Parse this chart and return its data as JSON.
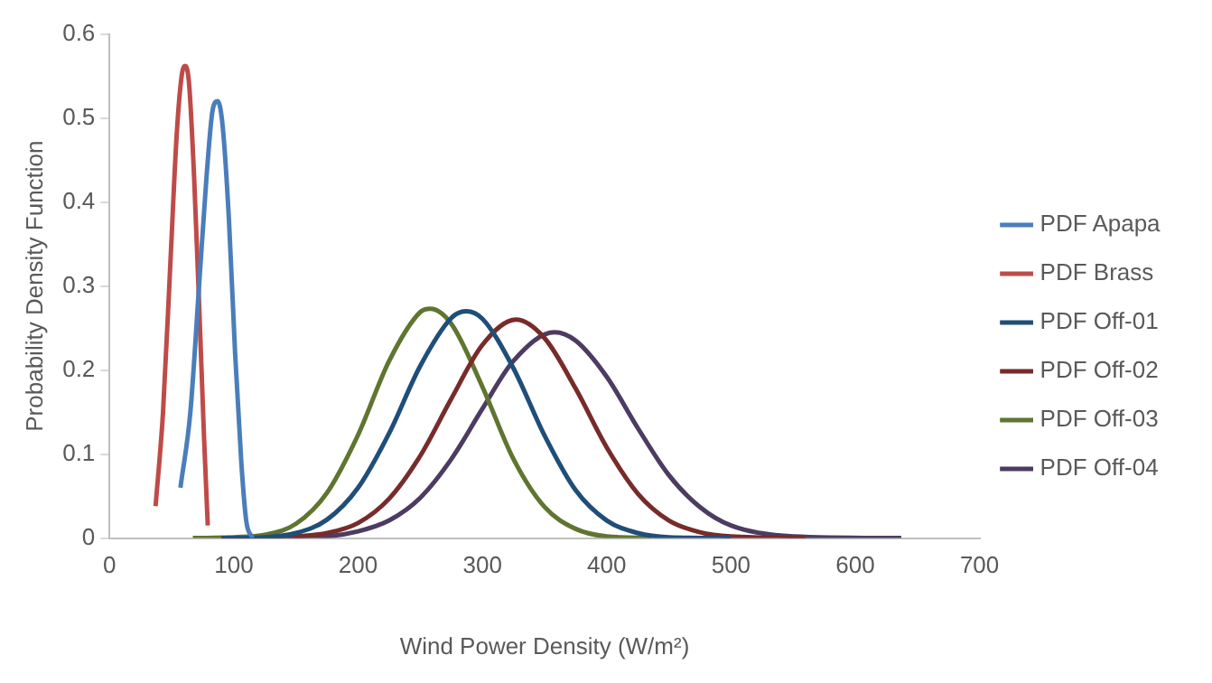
{
  "chart_data": {
    "type": "line",
    "xlabel": "Wind Power Density (W/m²)",
    "ylabel": "Probability Density Function",
    "xlim": [
      0,
      700
    ],
    "xticks": [
      0,
      100,
      200,
      300,
      400,
      500,
      600,
      700
    ],
    "ylim": [
      0,
      0.6
    ],
    "yticks": [
      0,
      0.1,
      0.2,
      0.3,
      0.4,
      0.5,
      0.6
    ],
    "grid": false,
    "legend": "right",
    "marker": "none",
    "line_style": "solid",
    "series": [
      {
        "name": "PDF Apapa",
        "color": "#4a7ebb",
        "x": [
          57,
          65,
          72,
          78,
          83,
          87,
          91,
          96,
          101,
          106,
          110,
          115
        ],
        "values": [
          0.06,
          0.15,
          0.3,
          0.43,
          0.51,
          0.52,
          0.49,
          0.38,
          0.22,
          0.09,
          0.02,
          0
        ]
      },
      {
        "name": "PDF Brass",
        "color": "#be4b48",
        "x": [
          37,
          43,
          49,
          54,
          58,
          61,
          64,
          68,
          72,
          76,
          79
        ],
        "values": [
          0.038,
          0.15,
          0.33,
          0.48,
          0.55,
          0.562,
          0.54,
          0.43,
          0.28,
          0.12,
          0.015
        ]
      },
      {
        "name": "PDF Off-01",
        "color": "#1f4e79",
        "x": [
          90,
          125,
          150,
          175,
          200,
          225,
          250,
          275,
          287,
          300,
          325,
          350,
          375,
          400,
          425,
          450,
          500
        ],
        "values": [
          0,
          0.001,
          0.006,
          0.022,
          0.06,
          0.125,
          0.205,
          0.262,
          0.27,
          0.261,
          0.202,
          0.122,
          0.057,
          0.021,
          0.006,
          0.001,
          0
        ]
      },
      {
        "name": "PDF Off-02",
        "color": "#772c2a",
        "x": [
          90,
          125,
          150,
          175,
          200,
          225,
          250,
          275,
          300,
          327,
          350,
          375,
          400,
          425,
          450,
          475,
          500,
          560
        ],
        "values": [
          0,
          0,
          0.002,
          0.006,
          0.018,
          0.047,
          0.098,
          0.166,
          0.23,
          0.26,
          0.238,
          0.178,
          0.108,
          0.053,
          0.021,
          0.007,
          0.002,
          0
        ]
      },
      {
        "name": "PDF Off-03",
        "color": "#5f7530",
        "x": [
          67,
          100,
          125,
          150,
          175,
          200,
          225,
          250,
          258,
          275,
          300,
          325,
          350,
          375,
          400,
          436
        ],
        "values": [
          0,
          0.001,
          0.004,
          0.017,
          0.054,
          0.123,
          0.211,
          0.269,
          0.273,
          0.255,
          0.18,
          0.094,
          0.037,
          0.011,
          0.002,
          0
        ]
      },
      {
        "name": "PDF Off-04",
        "color": "#4d3b62",
        "x": [
          90,
          125,
          150,
          175,
          200,
          225,
          250,
          275,
          300,
          325,
          358,
          375,
          400,
          425,
          450,
          475,
          500,
          550,
          637
        ],
        "values": [
          0,
          0,
          0.001,
          0.002,
          0.008,
          0.021,
          0.048,
          0.094,
          0.154,
          0.211,
          0.245,
          0.235,
          0.192,
          0.131,
          0.075,
          0.037,
          0.015,
          0.002,
          0
        ]
      }
    ]
  }
}
